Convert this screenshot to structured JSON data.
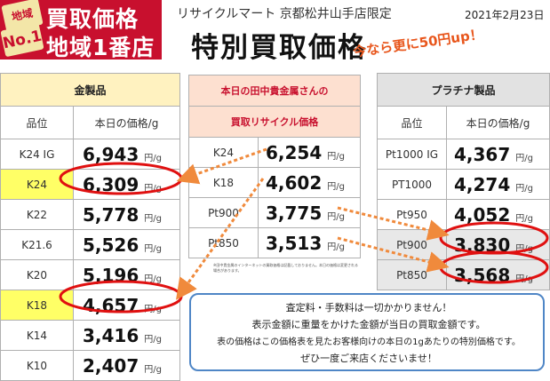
{
  "logo": {
    "badge_top": "地域",
    "badge_bottom": "No.1",
    "line1": "買取価格",
    "line2": "地域1番店"
  },
  "header": {
    "subtitle": "リサイクルマート 京都松井山手店限定",
    "date": "2021年2月23日",
    "title": "特別買取価格",
    "promo": "今なら更に50円up！"
  },
  "gold_table": {
    "title": "金製品",
    "col_grade": "品位",
    "col_price": "本日の価格/g",
    "unit": "円/g",
    "rows": [
      {
        "grade": "K24 IG",
        "price": "6,943"
      },
      {
        "grade": "K24",
        "price": "6,309"
      },
      {
        "grade": "K22",
        "price": "5,778"
      },
      {
        "grade": "K21.6",
        "price": "5,526"
      },
      {
        "grade": "K20",
        "price": "5,196"
      },
      {
        "grade": "K18",
        "price": "4,657"
      },
      {
        "grade": "K14",
        "price": "3,416"
      },
      {
        "grade": "K10",
        "price": "2,407"
      }
    ]
  },
  "tanaka_table": {
    "title_line1": "本日の田中貴金属さんの",
    "title_line2": "買取リサイクル価格",
    "unit": "円/g",
    "rows": [
      {
        "grade": "K24",
        "price": "6,254"
      },
      {
        "grade": "K18",
        "price": "4,602"
      },
      {
        "grade": "Pt900",
        "price": "3,775"
      },
      {
        "grade": "Pt850",
        "price": "3,513"
      }
    ],
    "disclaimer": "※田中貴金属のインターネットの買取価格は記載しておりません。本日の価格は変更される場合があります。"
  },
  "platinum_table": {
    "title": "プラチナ製品",
    "col_grade": "品位",
    "col_price": "本日の価格/g",
    "unit": "円/g",
    "rows": [
      {
        "grade": "Pt1000 IG",
        "price": "4,367"
      },
      {
        "grade": "PT1000",
        "price": "4,274"
      },
      {
        "grade": "Pt950",
        "price": "4,052"
      },
      {
        "grade": "Pt900",
        "price": "3,830"
      },
      {
        "grade": "Pt850",
        "price": "3,568"
      }
    ]
  },
  "notice": {
    "line1": "査定料・手数料は一切かかりません！",
    "line2": "表示金額に重量をかけた金額が当日の買取金額です。",
    "line3": "表の価格はこの価格表を見たお客様向けの本日の1gあたりの特別価格です。",
    "line4": "ぜひ一度ご来店くださいませ！"
  },
  "colors": {
    "logo_red": "#c8102e",
    "gold_header": "#fff2c0",
    "tanaka_header": "#fde0d0",
    "platinum_header": "#e2e2e2",
    "highlight_yellow": "#ffff66",
    "circle_red": "#e01010",
    "arrow_orange": "#f08a3c",
    "notice_border": "#4f86c6"
  }
}
